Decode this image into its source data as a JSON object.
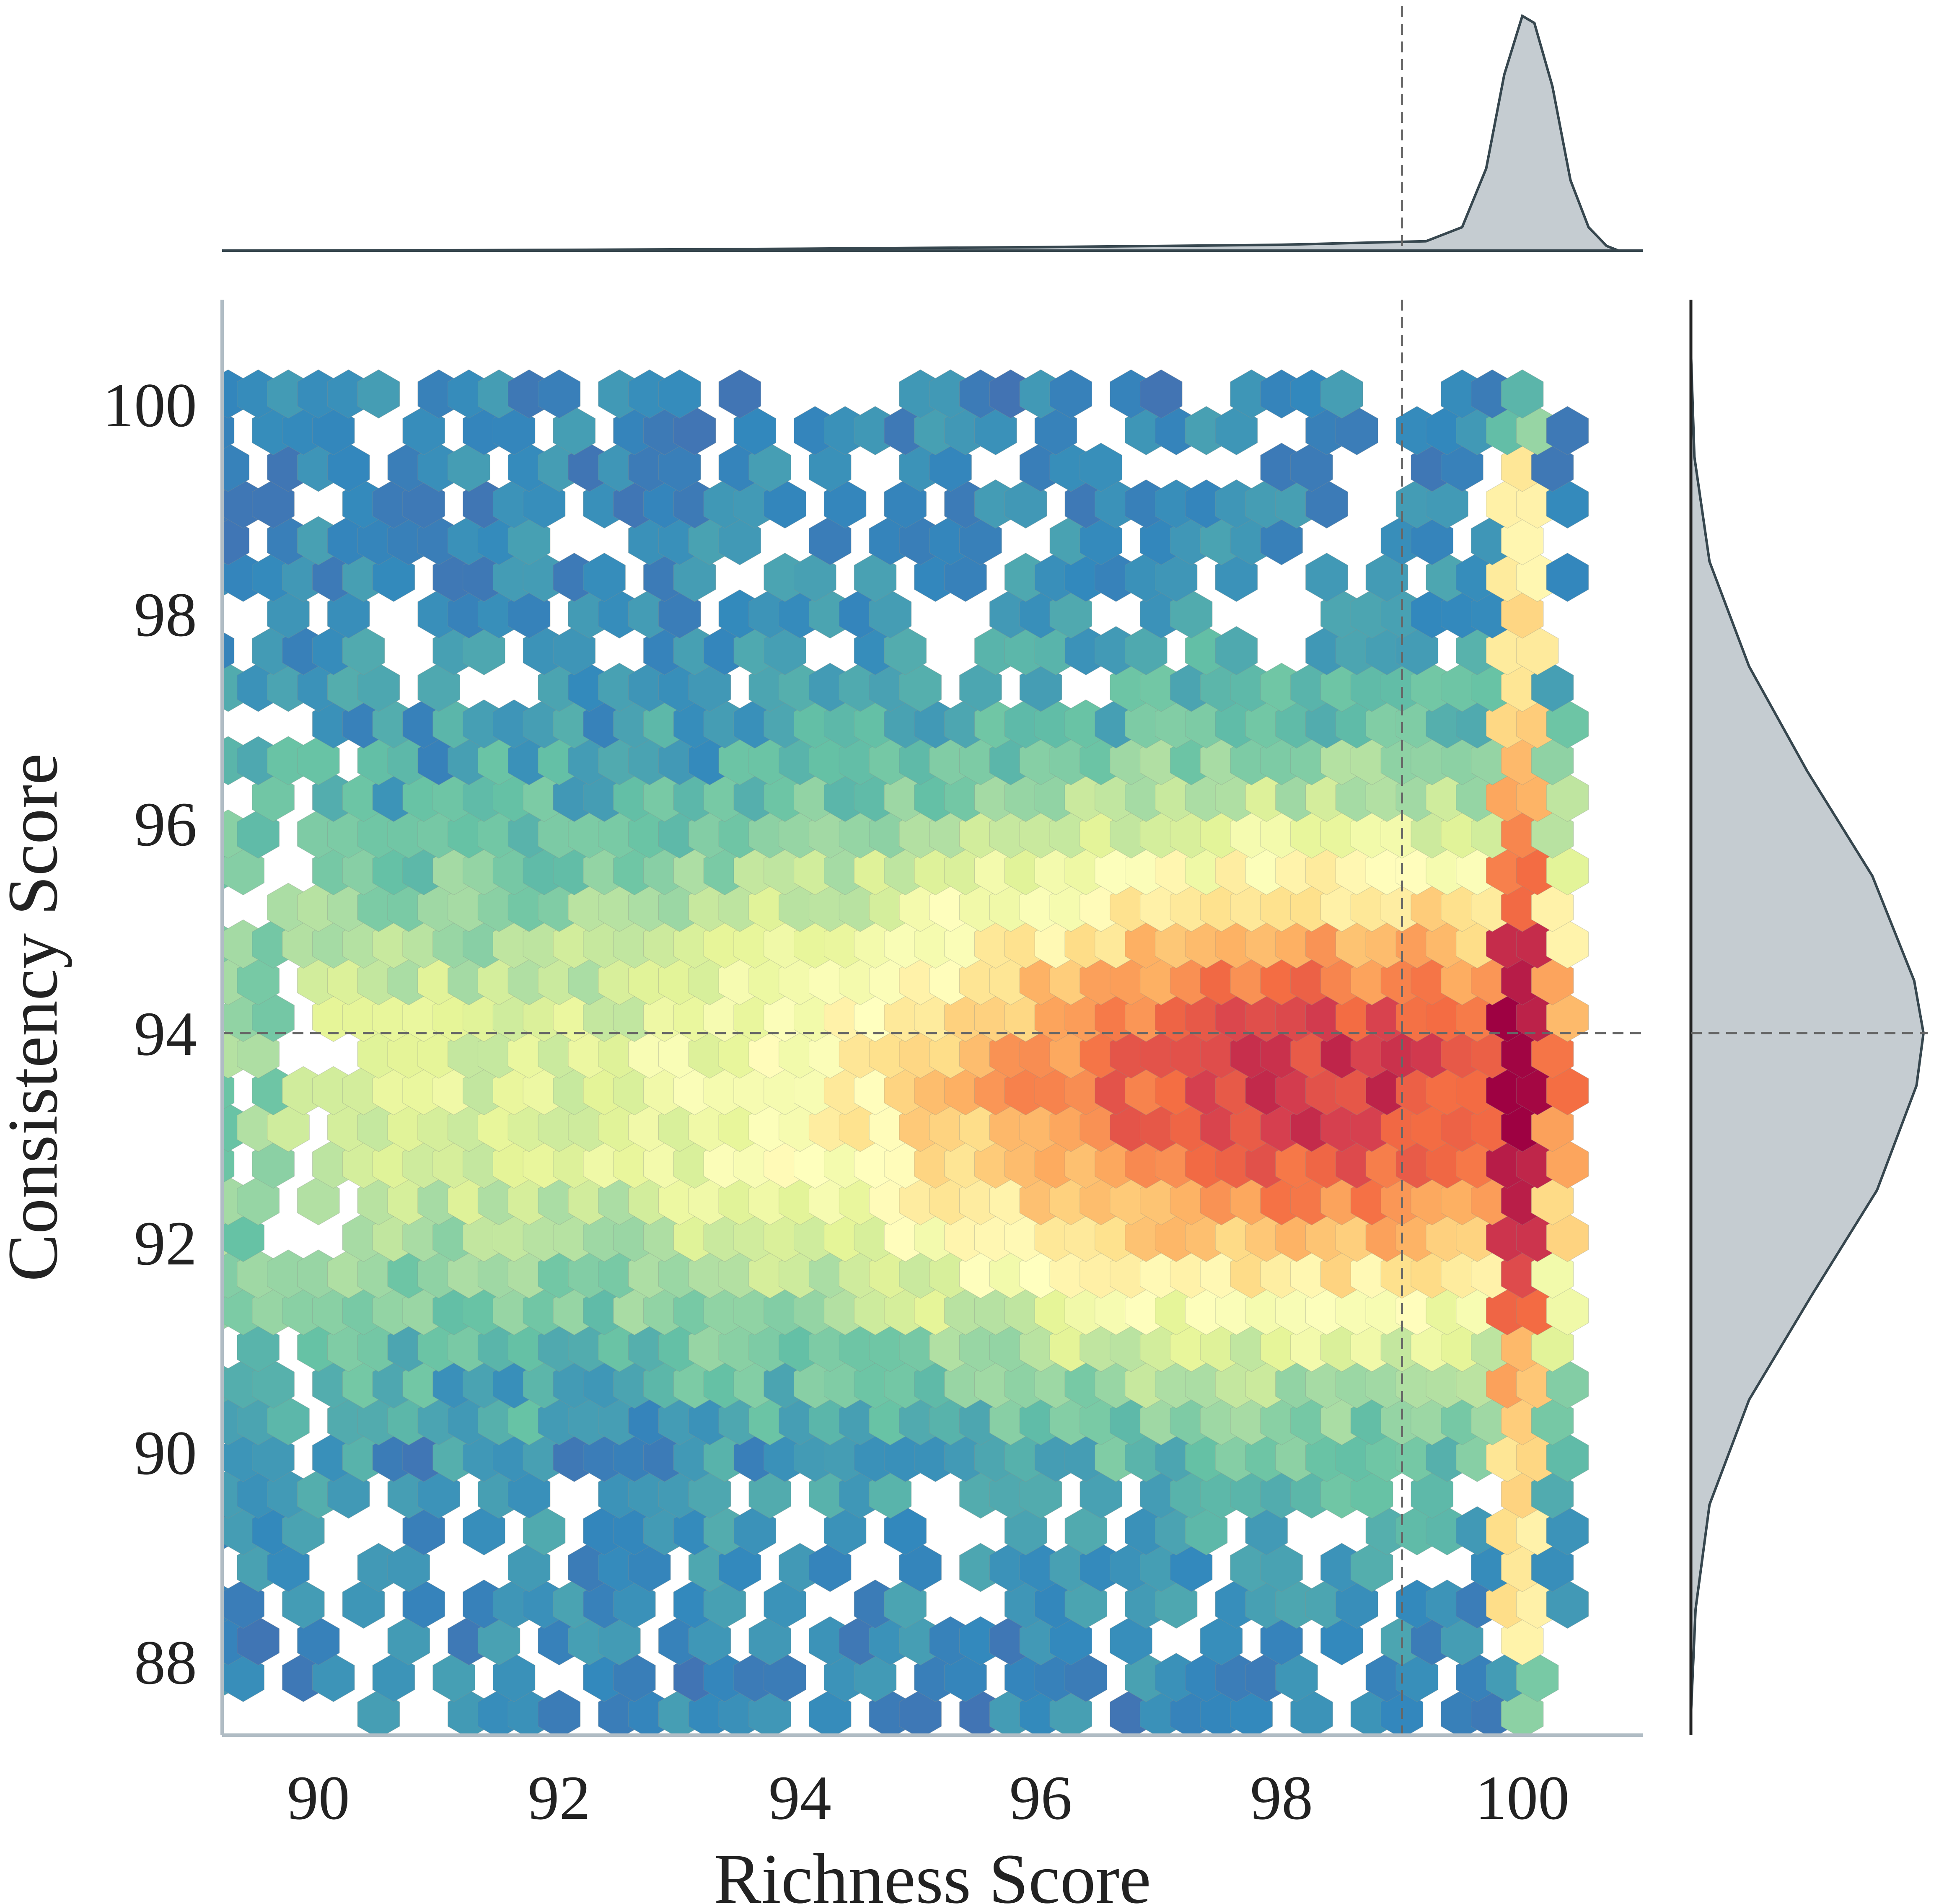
{
  "chart_data": {
    "type": "hexbin",
    "title": "",
    "xlabel": "Richness Score",
    "ylabel": "Consistency Score",
    "xlim": [
      89.2,
      101.0
    ],
    "ylim": [
      87.3,
      101.0
    ],
    "xticks": [
      90,
      92,
      94,
      96,
      98,
      100
    ],
    "yticks": [
      88,
      90,
      92,
      94,
      96,
      98,
      100
    ],
    "xtick_labels": [
      "90",
      "92",
      "94",
      "96",
      "98",
      "100"
    ],
    "ytick_labels": [
      "88",
      "90",
      "92",
      "94",
      "96",
      "98",
      "100"
    ],
    "reference_lines": {
      "x": 99.0,
      "y": 94.0,
      "style": "dashed"
    },
    "colormap": "Spectral_r",
    "density_model": {
      "x_range": [
        89.2,
        100.4
      ],
      "y_range": [
        87.5,
        100.2
      ],
      "x_peak": 98.3,
      "y_peak": 93.5,
      "y_sd": 1.8,
      "edge_column_x": 100.0,
      "edge_column_boost": "highest counts (red) in x = 100 column"
    },
    "marginal_x": {
      "type": "kde",
      "mode": 100.0,
      "points": [
        [
          89.2,
          0.0
        ],
        [
          92,
          0.003
        ],
        [
          94,
          0.008
        ],
        [
          96,
          0.015
        ],
        [
          98,
          0.025
        ],
        [
          99.2,
          0.04
        ],
        [
          99.5,
          0.1
        ],
        [
          99.7,
          0.35
        ],
        [
          99.85,
          0.75
        ],
        [
          100.0,
          1.0
        ],
        [
          100.1,
          0.97
        ],
        [
          100.25,
          0.7
        ],
        [
          100.4,
          0.3
        ],
        [
          100.55,
          0.1
        ],
        [
          100.7,
          0.02
        ],
        [
          100.8,
          0.0
        ]
      ]
    },
    "marginal_y": {
      "type": "kde",
      "mode": 94.0,
      "points": [
        [
          87.5,
          0.0
        ],
        [
          88.5,
          0.02
        ],
        [
          89.5,
          0.08
        ],
        [
          90.5,
          0.25
        ],
        [
          91.5,
          0.52
        ],
        [
          92.5,
          0.8
        ],
        [
          93.5,
          0.97
        ],
        [
          94.0,
          1.0
        ],
        [
          94.5,
          0.96
        ],
        [
          95.5,
          0.78
        ],
        [
          96.5,
          0.5
        ],
        [
          97.5,
          0.25
        ],
        [
          98.5,
          0.08
        ],
        [
          99.5,
          0.015
        ],
        [
          100.5,
          0.0
        ]
      ]
    },
    "colors": {
      "text": "#222222",
      "axis_spine": "#b0bcc4",
      "marginal_fill": "#c5ccd1",
      "marginal_line": "#37474f",
      "reference_line": "#666666"
    }
  }
}
